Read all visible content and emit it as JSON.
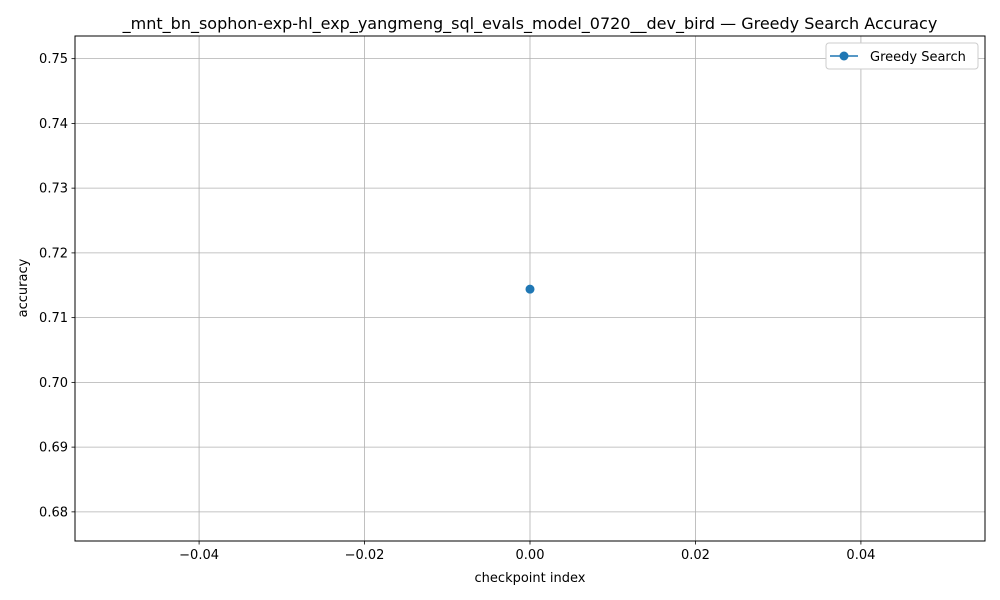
{
  "chart_data": {
    "type": "line",
    "title": "_mnt_bn_sophon-exp-hl_exp_yangmeng_sql_evals_model_0720__dev_bird — Greedy Search Accuracy",
    "xlabel": "checkpoint index",
    "ylabel": "accuracy",
    "xlim": [
      -0.055,
      0.055
    ],
    "ylim": [
      0.6755,
      0.7535
    ],
    "x_ticks": [
      -0.04,
      -0.02,
      0.0,
      0.02,
      0.04
    ],
    "x_tick_labels": [
      "−0.04",
      "−0.02",
      "0.00",
      "0.02",
      "0.04"
    ],
    "y_ticks": [
      0.68,
      0.69,
      0.7,
      0.71,
      0.72,
      0.73,
      0.74,
      0.75
    ],
    "y_tick_labels": [
      "0.68",
      "0.69",
      "0.70",
      "0.71",
      "0.72",
      "0.73",
      "0.74",
      "0.75"
    ],
    "grid": true,
    "legend_position": "top-right",
    "series": [
      {
        "name": "Greedy Search",
        "color": "#1f77b4",
        "marker": "circle",
        "x": [
          0
        ],
        "y": [
          0.7144
        ]
      }
    ]
  }
}
